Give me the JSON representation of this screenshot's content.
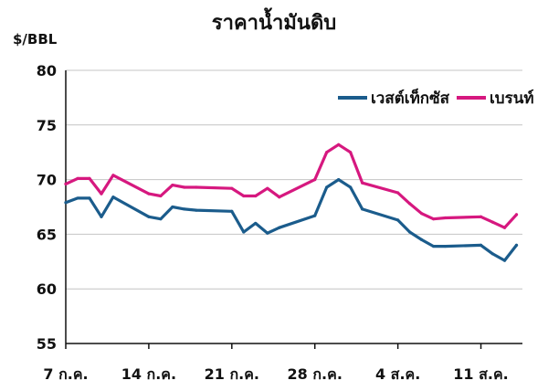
{
  "chart_data": {
    "type": "line",
    "title": "ราคาน้ำมันดิบ",
    "ylabel": "$/BBL",
    "xlabel": "",
    "ylim": [
      55,
      80
    ],
    "yticks": [
      55,
      60,
      65,
      70,
      75,
      80
    ],
    "grid": true,
    "legend_position": "top-right",
    "x_tick_labels": [
      "7 ก.ค.",
      "14 ก.ค.",
      "21 ก.ค.",
      "28 ก.ค.",
      "4 ส.ค.",
      "11 ส.ค."
    ],
    "x_tick_days": [
      7,
      14,
      21,
      28,
      35,
      42
    ],
    "x": [
      7,
      8,
      9,
      10,
      11,
      14,
      15,
      16,
      17,
      18,
      21,
      22,
      23,
      24,
      25,
      28,
      29,
      30,
      31,
      32,
      35,
      36,
      37,
      38,
      39,
      42,
      43,
      44,
      45
    ],
    "series": [
      {
        "name": "เวสต์เท็กซัส",
        "color": "#1b5c8c",
        "values": [
          67.9,
          68.3,
          68.3,
          66.6,
          68.4,
          66.6,
          66.4,
          67.5,
          67.3,
          67.2,
          67.1,
          65.2,
          66.0,
          65.1,
          65.6,
          66.7,
          69.3,
          70.0,
          69.3,
          67.3,
          66.3,
          65.2,
          64.5,
          63.9,
          63.9,
          64.0,
          63.2,
          62.6,
          64.0
        ]
      },
      {
        "name": "เบรนท์",
        "color": "#d6187f",
        "values": [
          69.6,
          70.1,
          70.1,
          68.7,
          70.4,
          68.7,
          68.5,
          69.5,
          69.3,
          69.3,
          69.2,
          68.5,
          68.5,
          69.2,
          68.4,
          70.0,
          72.5,
          73.2,
          72.5,
          69.7,
          68.8,
          67.8,
          66.9,
          66.4,
          66.5,
          66.6,
          66.1,
          65.6,
          66.8
        ]
      }
    ]
  }
}
